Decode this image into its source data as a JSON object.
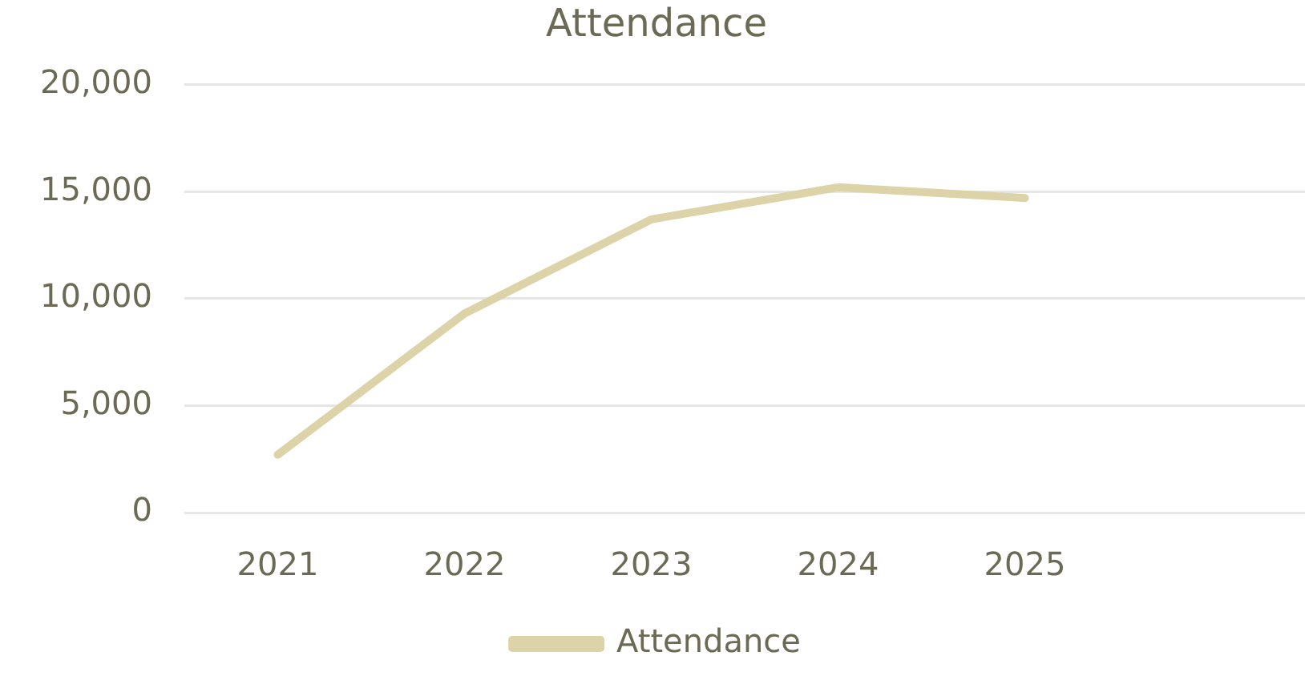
{
  "chart_data": {
    "type": "line",
    "title": "Attendance",
    "categories": [
      "2021",
      "2022",
      "2023",
      "2024",
      "2025",
      null
    ],
    "series": [
      {
        "name": "Attendance",
        "color": "#ddd3a8",
        "values": [
          2700,
          9300,
          13700,
          15200,
          14700,
          null
        ]
      }
    ],
    "ylim": [
      0,
      20000
    ],
    "yticks": [
      {
        "value": 0,
        "label": "0"
      },
      {
        "value": 5000,
        "label": "5,000"
      },
      {
        "value": 10000,
        "label": "10,000"
      },
      {
        "value": 15000,
        "label": "15,000"
      },
      {
        "value": 20000,
        "label": "20,000"
      }
    ],
    "grid": "y",
    "legend": "bottom",
    "marker": "none",
    "line_style": "solid"
  }
}
